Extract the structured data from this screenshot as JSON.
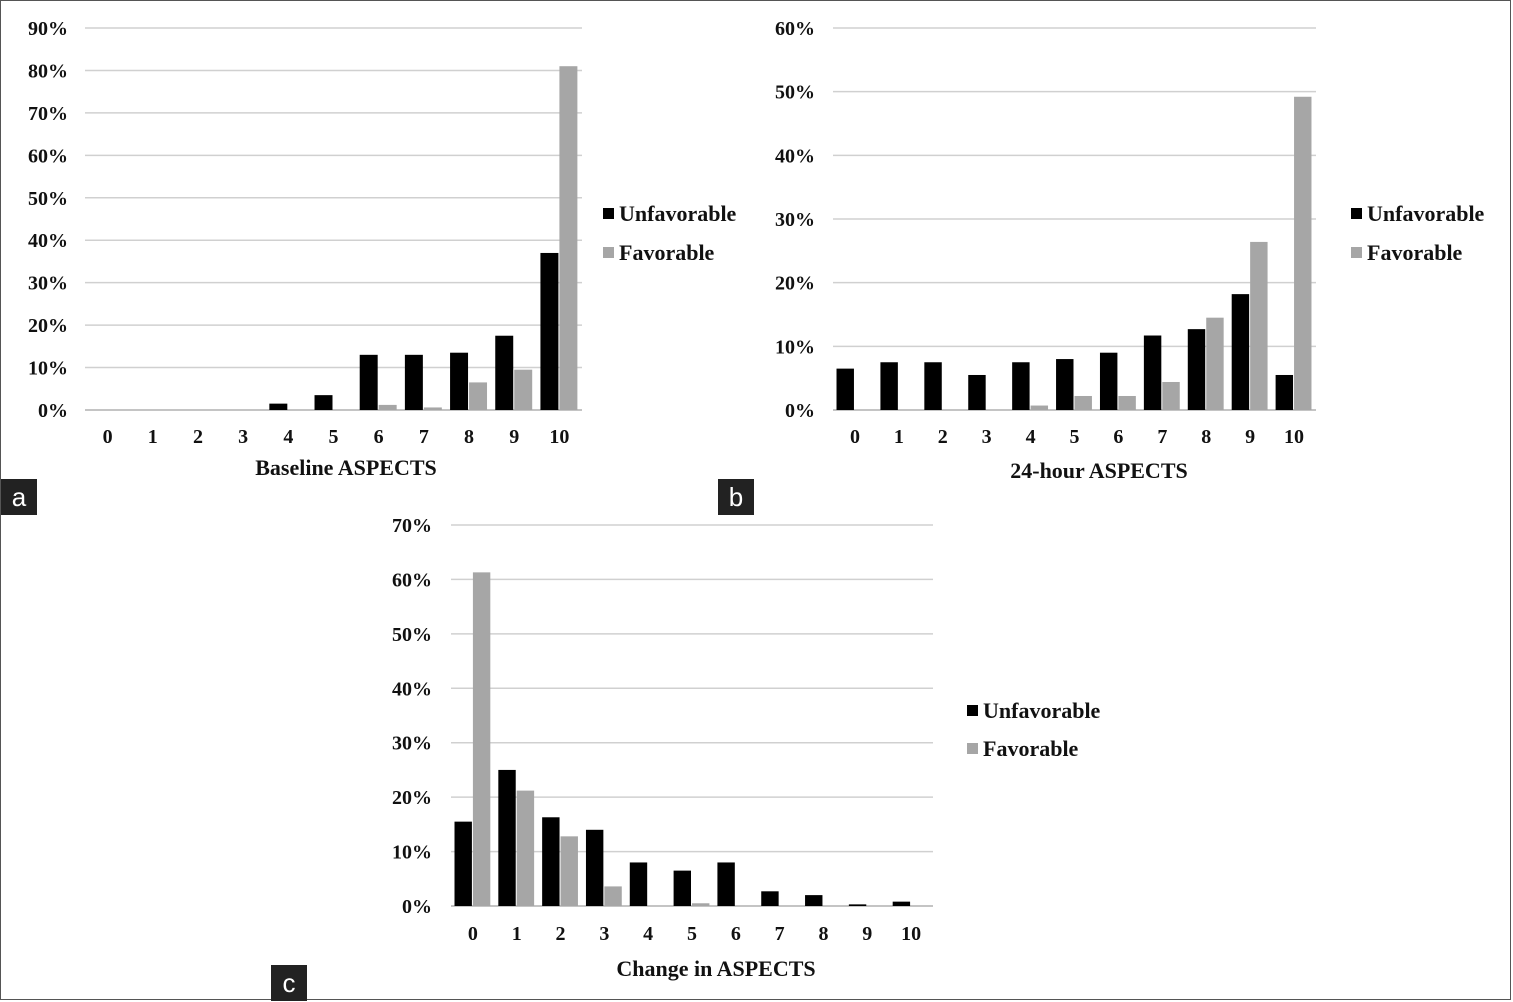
{
  "chart_data": [
    {
      "type": "bar",
      "panel": "a",
      "categories": [
        "0",
        "1",
        "2",
        "3",
        "4",
        "5",
        "6",
        "7",
        "8",
        "9",
        "10"
      ],
      "xlabel": "Baseline ASPECTS",
      "ylabel": "",
      "ylim": [
        0,
        90
      ],
      "yticks": [
        "0%",
        "10%",
        "20%",
        "30%",
        "40%",
        "50%",
        "60%",
        "70%",
        "80%",
        "90%"
      ],
      "grid": true,
      "legend": "right",
      "series": [
        {
          "name": "Unfavorable",
          "color": "#000000",
          "values": [
            0,
            0,
            0,
            0,
            1.5,
            3.5,
            13,
            13,
            13.5,
            17.5,
            37
          ]
        },
        {
          "name": "Favorable",
          "color": "#a6a6a6",
          "values": [
            0,
            0,
            0,
            0,
            0,
            0,
            1.2,
            0.6,
            6.5,
            9.5,
            81
          ]
        }
      ]
    },
    {
      "type": "bar",
      "panel": "b",
      "categories": [
        "0",
        "1",
        "2",
        "3",
        "4",
        "5",
        "6",
        "7",
        "8",
        "9",
        "10"
      ],
      "xlabel": "24-hour ASPECTS",
      "ylabel": "",
      "ylim": [
        0,
        60
      ],
      "yticks": [
        "0%",
        "10%",
        "20%",
        "30%",
        "40%",
        "50%",
        "60%"
      ],
      "grid": true,
      "legend": "right",
      "series": [
        {
          "name": "Unfavorable",
          "color": "#000000",
          "values": [
            6.5,
            7.5,
            7.5,
            5.5,
            7.5,
            8,
            9,
            11.7,
            12.7,
            18.2,
            5.5
          ]
        },
        {
          "name": "Favorable",
          "color": "#a6a6a6",
          "values": [
            0,
            0,
            0,
            0,
            0.7,
            2.2,
            2.2,
            4.4,
            14.5,
            26.4,
            49.2
          ]
        }
      ]
    },
    {
      "type": "bar",
      "panel": "c",
      "categories": [
        "0",
        "1",
        "2",
        "3",
        "4",
        "5",
        "6",
        "7",
        "8",
        "9",
        "10"
      ],
      "xlabel": "Change in ASPECTS",
      "ylabel": "",
      "ylim": [
        0,
        70
      ],
      "yticks": [
        "0%",
        "10%",
        "20%",
        "30%",
        "40%",
        "50%",
        "60%",
        "70%"
      ],
      "grid": true,
      "legend": "right",
      "series": [
        {
          "name": "Unfavorable",
          "color": "#000000",
          "values": [
            15.5,
            25,
            16.3,
            14,
            8,
            6.5,
            8,
            2.7,
            2,
            0.3,
            0.8
          ]
        },
        {
          "name": "Favorable",
          "color": "#a6a6a6",
          "values": [
            61.3,
            21.2,
            12.8,
            3.6,
            0,
            0.5,
            0,
            0,
            0,
            0,
            0
          ]
        }
      ]
    }
  ]
}
